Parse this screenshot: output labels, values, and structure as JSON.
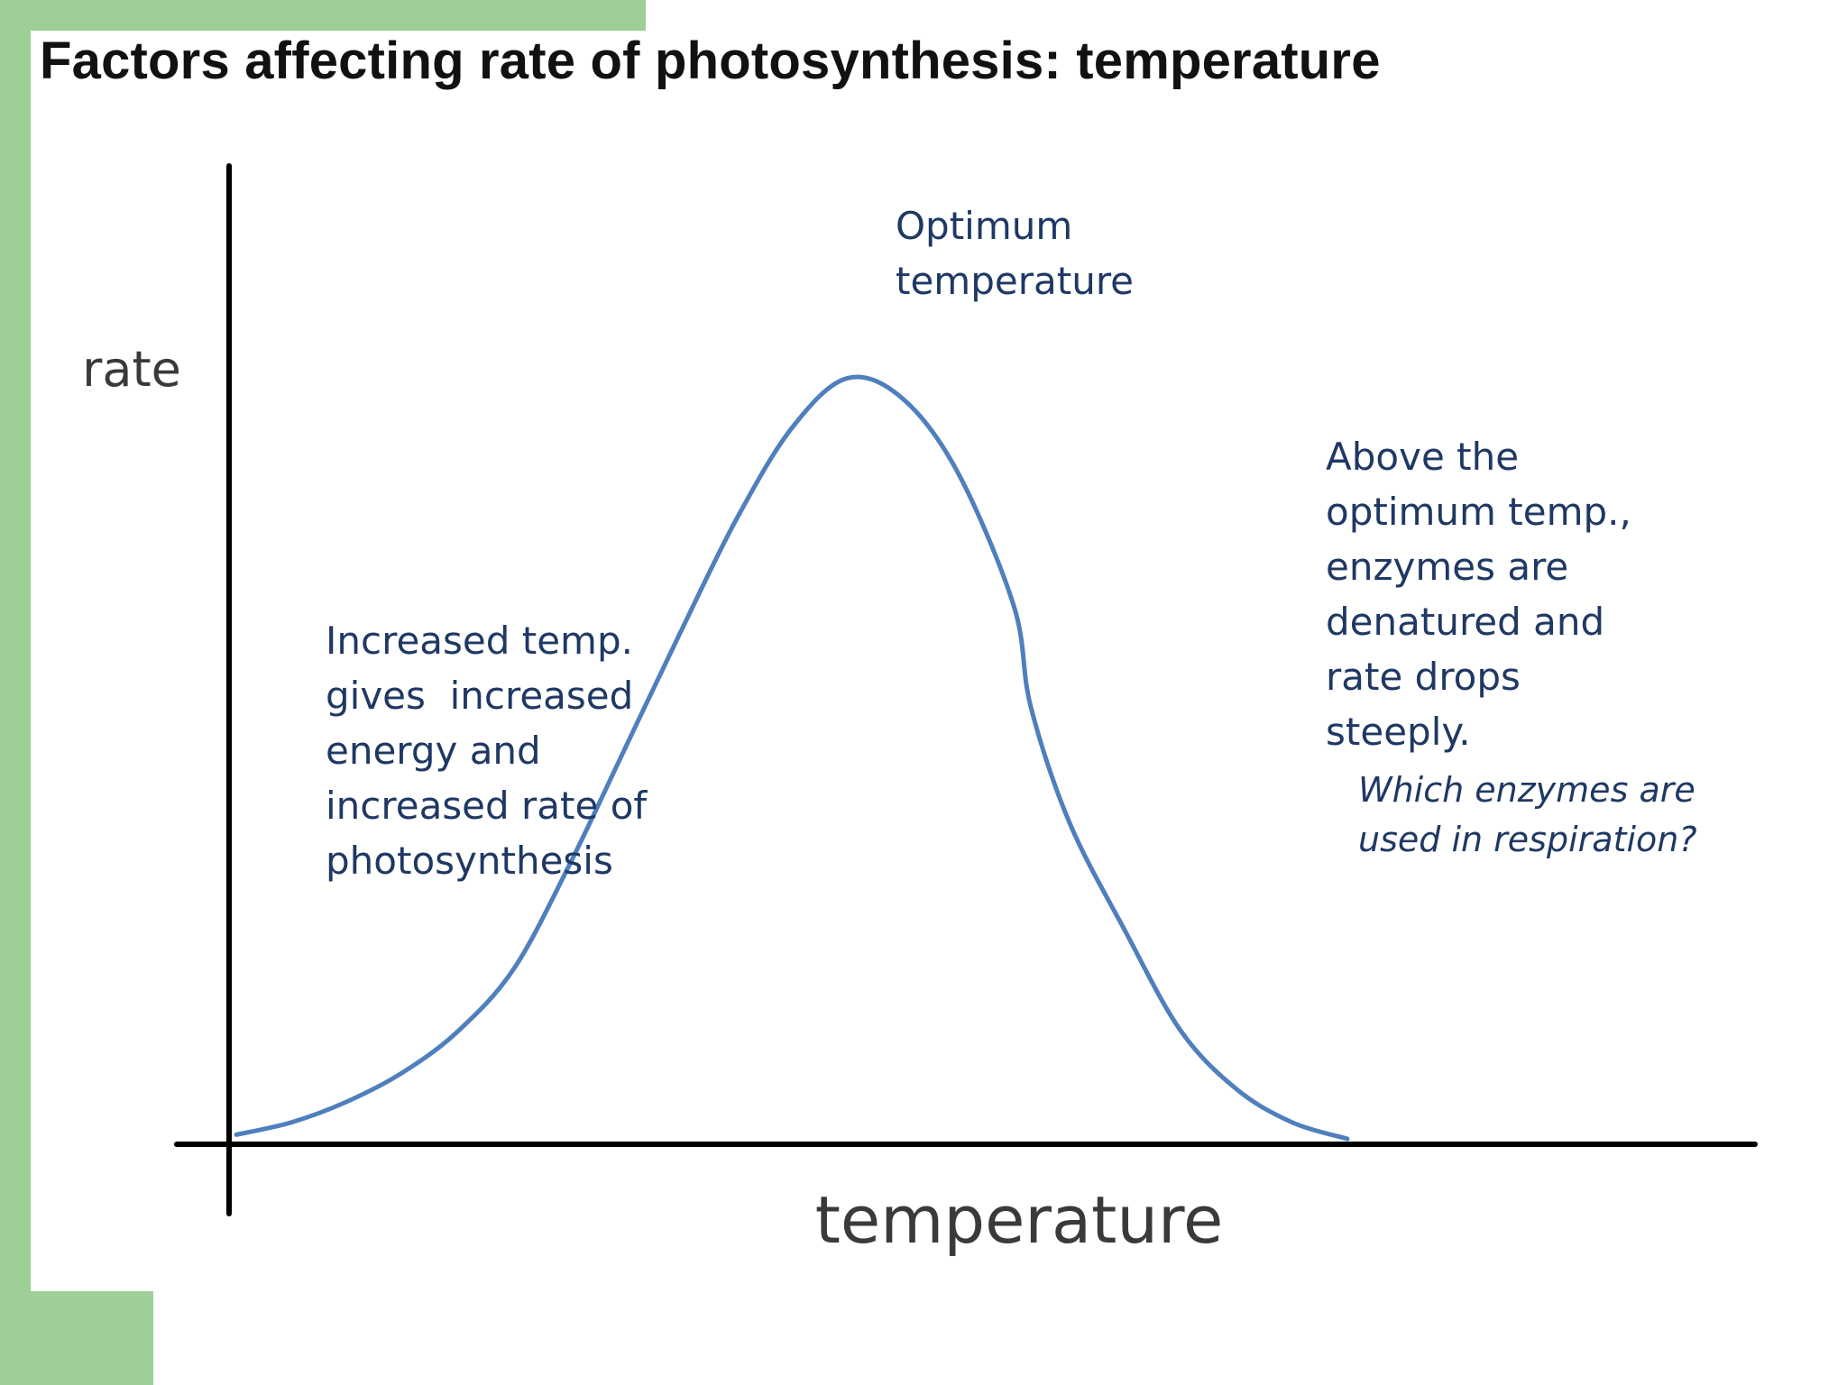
{
  "slide": {
    "title": "Factors affecting rate of photosynthesis: temperature",
    "accent_color": "#9dcf97",
    "curve_color": "#4f7fbd",
    "text_color": "#1f3864"
  },
  "chart_data": {
    "type": "line",
    "title": "Factors affecting rate of photosynthesis: temperature",
    "xlabel": "temperature",
    "ylabel": "rate",
    "x_ticks": [],
    "y_ticks": [],
    "grid": false,
    "series": [
      {
        "x": [
          0,
          5,
          10,
          15,
          20,
          25,
          30,
          35,
          40,
          45,
          50,
          55,
          60,
          65,
          70,
          71.5,
          75,
          80,
          85,
          90,
          95,
          100
        ],
        "y": [
          0.5,
          2.0,
          4.5,
          8.0,
          13.0,
          20.5,
          33.0,
          47.0,
          61.0,
          74.5,
          85.5,
          91.5,
          89.0,
          80.0,
          64.0,
          52.0,
          38.0,
          25.0,
          13.0,
          6.0,
          2.0,
          0.0
        ]
      }
    ],
    "xlim": [
      0,
      100
    ],
    "ylim": [
      0,
      100
    ],
    "annotations": {
      "optimum": [
        "Optimum",
        "temperature"
      ],
      "rising": [
        "Increased temp.",
        "gives  increased",
        "energy and",
        "increased rate of",
        "photosynthesis"
      ],
      "falling": [
        "Above the",
        "optimum temp.,",
        "enzymes are",
        "denatured and",
        "rate drops",
        "steeply."
      ],
      "question": [
        "Which enzymes are",
        "used in respiration?"
      ]
    }
  }
}
